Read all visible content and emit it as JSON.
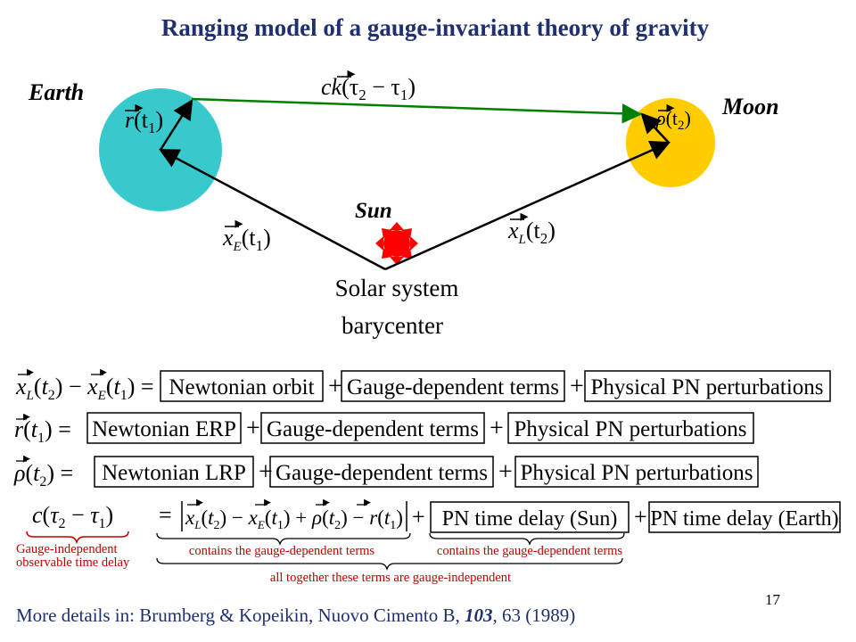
{
  "title": "Ranging model of a gauge-invariant theory of gravity",
  "labels": {
    "earth": "Earth",
    "moon": "Moon",
    "sun": "Sun",
    "barycenter_line1": "Solar system",
    "barycenter_line2": "barycenter"
  },
  "vectors": {
    "light": {
      "sym": "ck",
      "args": "(τ",
      "sub2": "2",
      "mid": " − τ",
      "sub1": "1",
      "close": ")"
    },
    "earth_r": {
      "sym": "r",
      "args": "(t",
      "sub": "1",
      "close": ")"
    },
    "moon_rho": {
      "sym": "ρ",
      "args": "(t",
      "sub": "2",
      "close": ")"
    },
    "xE": {
      "sym": "x",
      "sub": "E",
      "args": "(t",
      "argsub": "1",
      "close": ")"
    },
    "xL": {
      "sym": "x",
      "sub": "L",
      "args": "(t",
      "argsub": "2",
      "close": ")"
    }
  },
  "equations": {
    "eq1": {
      "lhs": {
        "a": "x",
        "asub": "L",
        "t2": "2",
        "b": "x",
        "bsub": "E",
        "t1": "1"
      },
      "terms": [
        "Newtonian orbit",
        "Gauge-dependent terms",
        "Physical PN perturbations"
      ]
    },
    "eq2": {
      "lhs": {
        "sym": "r",
        "t": "1"
      },
      "terms": [
        "Newtonian ERP",
        "Gauge-dependent terms",
        "Physical PN perturbations"
      ]
    },
    "eq3": {
      "lhs": {
        "sym": "ρ",
        "t": "2"
      },
      "terms": [
        "Newtonian LRP",
        "Gauge-dependent terms",
        "Physical PN perturbations"
      ]
    },
    "eq4": {
      "lhs": {
        "c": "c",
        "tau2": "2",
        "tau1": "1"
      },
      "terms": [
        "PN time delay (Sun)",
        "PN time delay (Earth)"
      ],
      "annotations": {
        "gauge_independent_line1": "Gauge-independent",
        "gauge_independent_line2": "observable time delay",
        "contains_1": "contains the gauge-dependent terms",
        "contains_2": "contains the gauge-dependent terms",
        "all_together": "all together these terms are gauge-independent"
      }
    }
  },
  "footer": {
    "prefix": "More details in: Brumberg & Kopeikin, Nuovo Cimento B, ",
    "volume": "103",
    "suffix": ", 63 (1989)"
  },
  "page_number": "17",
  "colors": {
    "title": "#1f2f6f",
    "earth": "#38c9cc",
    "moon": "#ffcc00",
    "sun": "#ff0000",
    "light_ray": "#008000",
    "annotation": "#c00000",
    "footer": "#1f2f6f"
  }
}
